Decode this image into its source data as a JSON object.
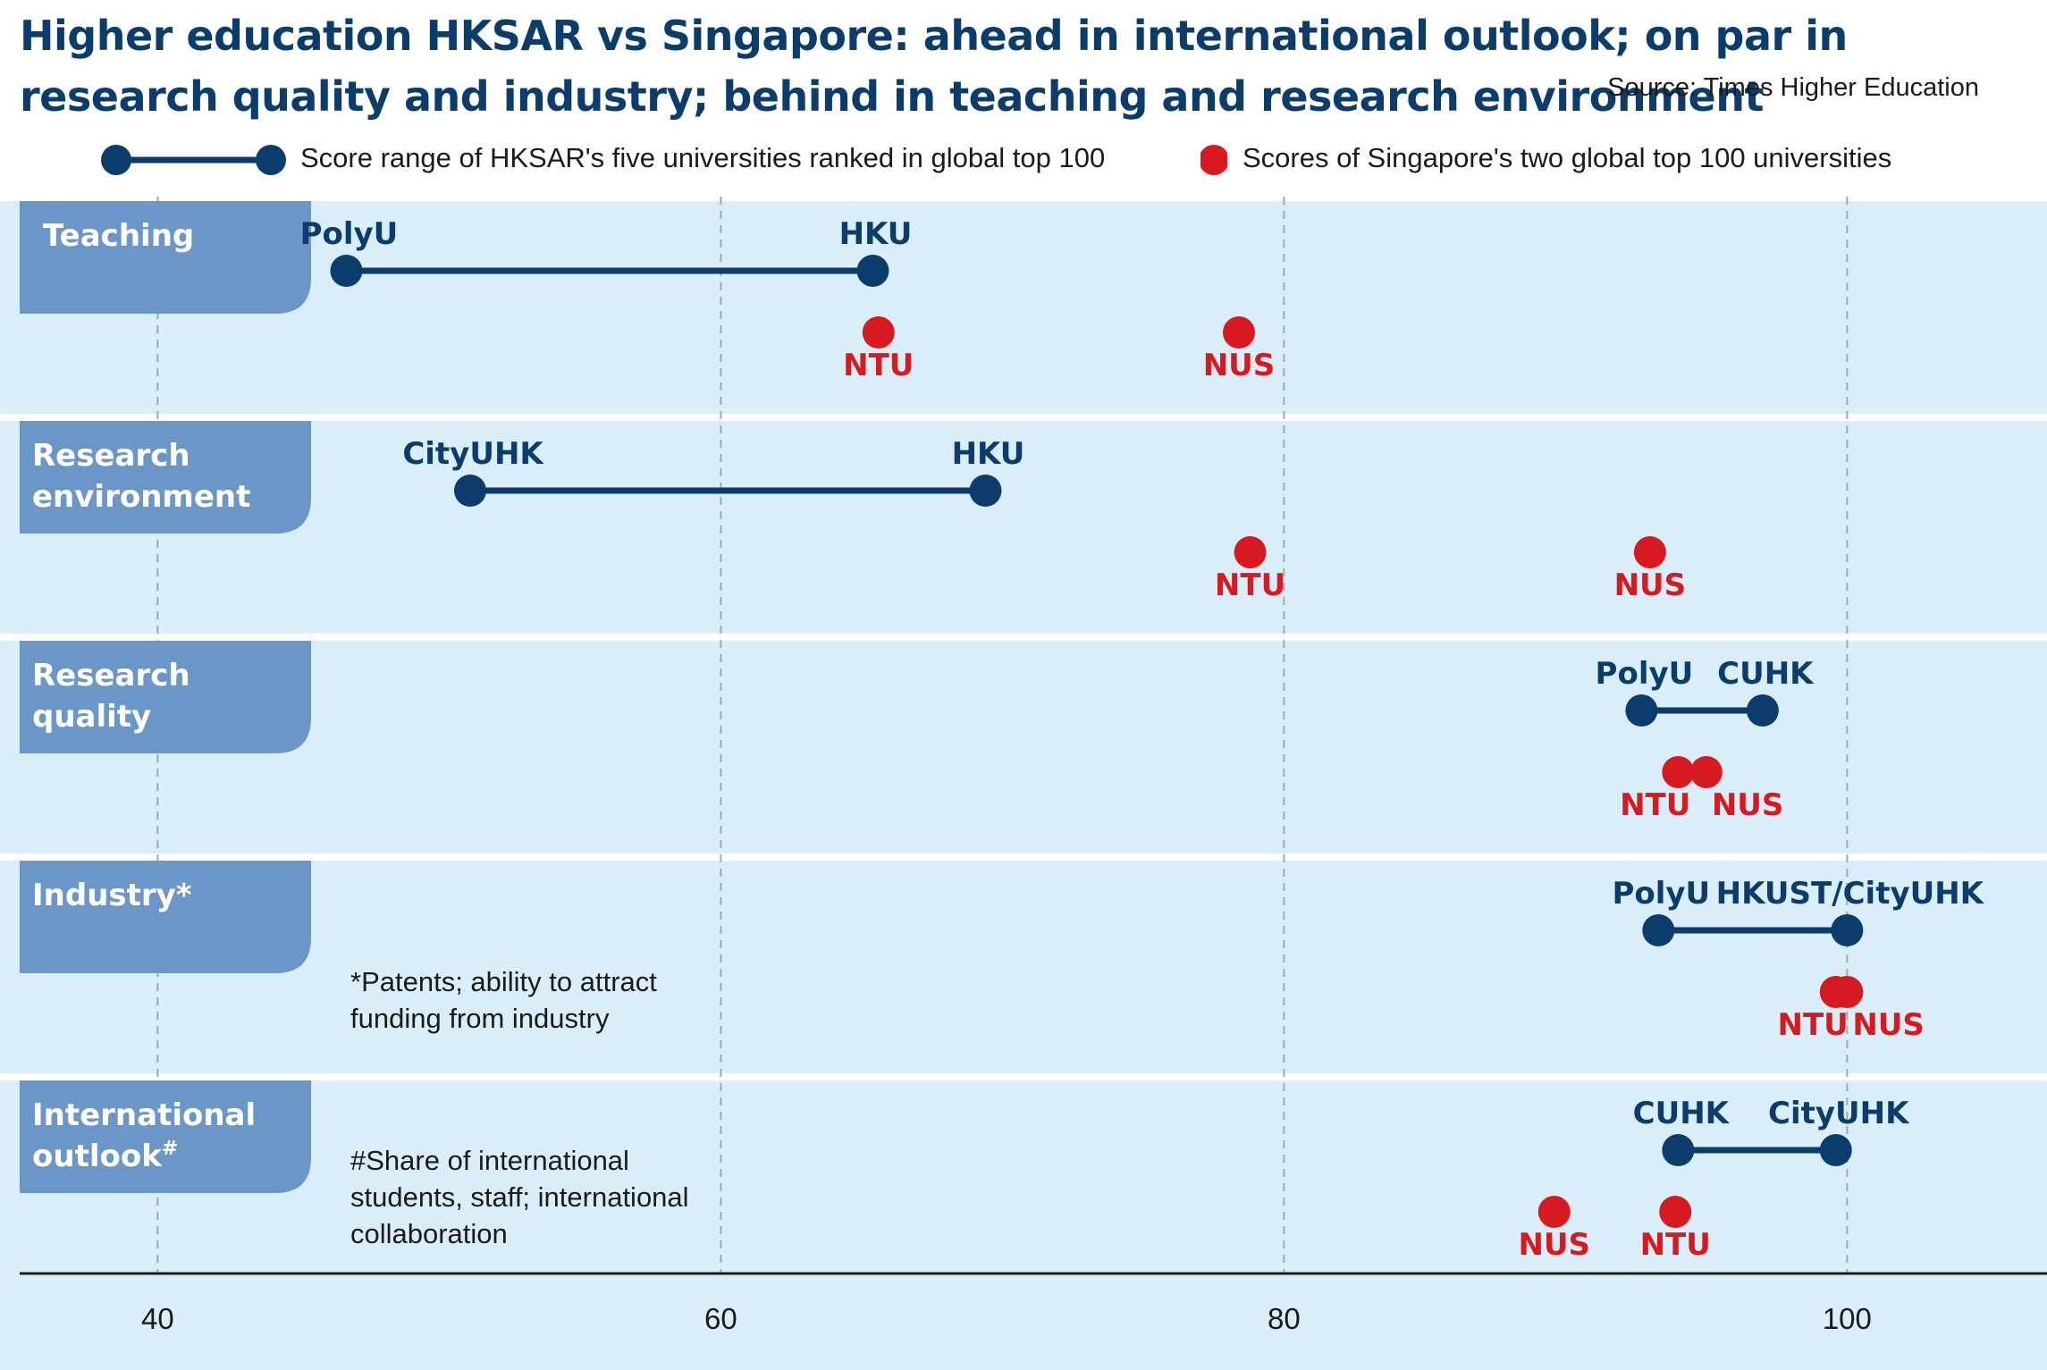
{
  "chart_data": {
    "type": "dumbbell",
    "title": "Higher education HKSAR vs Singapore: ahead in international outlook; on par in research quality and industry; behind in teaching and research environment",
    "source": "Source: Times Higher Education",
    "legend": {
      "hk": "Score range of HKSAR's five universities ranked in global top 100",
      "sg": "Scores of Singapore's two global top 100 universities"
    },
    "colors": {
      "hk": "#0a3d6b",
      "sg": "#d71920",
      "band": "#d9eef9",
      "tab": "#6b97c8"
    },
    "x_ticks": [
      40,
      60,
      80,
      100
    ],
    "xlim": [
      34.4,
      107.1
    ],
    "categories": [
      {
        "label_lines": [
          "Teaching"
        ],
        "superscript": "",
        "hk_range": {
          "min": {
            "name": "PolyU",
            "value": 46.7
          },
          "max": {
            "name": "HKU",
            "value": 65.4
          }
        },
        "sg": [
          {
            "name": "NTU",
            "value": 65.6
          },
          {
            "name": "NUS",
            "value": 78.4
          }
        ],
        "note": []
      },
      {
        "label_lines": [
          "Research",
          "environment"
        ],
        "superscript": "",
        "hk_range": {
          "min": {
            "name": "CityUHK",
            "value": 51.1
          },
          "max": {
            "name": "HKU",
            "value": 69.4
          }
        },
        "sg": [
          {
            "name": "NTU",
            "value": 78.8
          },
          {
            "name": "NUS",
            "value": 93.0
          }
        ],
        "note": []
      },
      {
        "label_lines": [
          "Research",
          "quality"
        ],
        "superscript": "",
        "hk_range": {
          "min": {
            "name": "PolyU",
            "value": 92.7
          },
          "max": {
            "name": "CUHK",
            "value": 97.0
          }
        },
        "sg": [
          {
            "name": "NTU",
            "value": 94.0
          },
          {
            "name": "NUS",
            "value": 95.0
          }
        ],
        "note": []
      },
      {
        "label_lines": [
          "Industry*"
        ],
        "superscript": "",
        "hk_range": {
          "min": {
            "name": "PolyU",
            "value": 93.3
          },
          "max": {
            "name": "HKUST/CityUHK",
            "value": 100.0
          }
        },
        "sg": [
          {
            "name": "NTU",
            "value": 99.6
          },
          {
            "name": "NUS",
            "value": 100.0
          }
        ],
        "note": [
          "*Patents; ability to attract",
          "funding from industry"
        ]
      },
      {
        "label_lines": [
          "International",
          "outlook"
        ],
        "superscript": "#",
        "hk_range": {
          "min": {
            "name": "CUHK",
            "value": 94.0
          },
          "max": {
            "name": "CityUHK",
            "value": 99.6
          }
        },
        "sg": [
          {
            "name": "NUS",
            "value": 89.6
          },
          {
            "name": "NTU",
            "value": 93.9
          }
        ],
        "note": [
          "#Share of international",
          "students, staff; international",
          "collaboration"
        ]
      }
    ]
  }
}
